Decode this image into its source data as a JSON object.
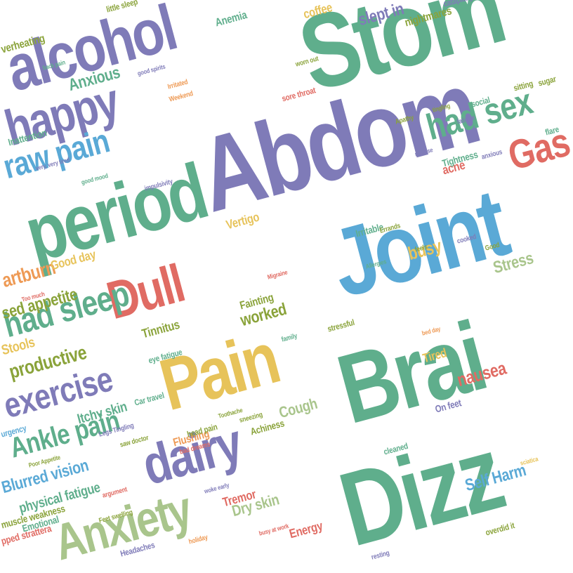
{
  "palette": {
    "green": "#5fae8c",
    "purple": "#7f7bb8",
    "blue": "#5aa9d6",
    "yellow": "#e7c35a",
    "red": "#e06b63",
    "orange": "#ee9a55",
    "olive": "#8aa33a",
    "sage": "#a9c58c"
  },
  "words": [
    "Abdom",
    "Stom",
    "Joint",
    "Brai",
    "Dizz",
    "period",
    "Pain",
    "alcohol",
    "happy",
    "Dull",
    "dairy",
    "Anxiety",
    "exercise",
    "had sleep",
    "Ankle pain",
    "raw pain",
    "Gas",
    "had sex",
    "artburn",
    "sed appetite",
    "productive",
    "Anxious",
    "nausea",
    "Self Harm",
    "Stress",
    "busy",
    "Blurred vision",
    "slept in",
    "physical fatigue",
    "Itchy skin",
    "Vertigo",
    "Tinnitus",
    "worked",
    "Dry skin",
    "Tremor",
    "Cough",
    "Stools",
    "Fainting",
    "Flushing",
    "Anemia",
    "coffee",
    "nightmares",
    "acne",
    "Irritable",
    "Tired",
    "Energy",
    "Good day",
    "eye fatigue",
    "head pain",
    "bad dreams",
    "sore throat",
    "Inattention",
    "Tightness",
    "On feet",
    "Emotional",
    "Headaches",
    "Feet swelling",
    "sneezing",
    "Achiness",
    "muscle weakness",
    "urgency",
    "cleaned",
    "overdid it",
    "stressful",
    "little sleep",
    "cataplexy",
    "worn out",
    "social",
    "sugar",
    "sitting",
    "flare",
    "feels",
    "cooked",
    "Good",
    "Allergies",
    "holiday",
    "resting",
    "verheating",
    "Legs Tingling",
    "Car travel",
    "saw doctor",
    "argument",
    "impulsivity",
    "pped strattera",
    "Poor Appetite",
    "malaise",
    "anxious",
    "family",
    "Errands",
    "bed day",
    "Weekend",
    "Irritated",
    "good spirits",
    "back pain",
    "fatigue",
    "very, very tired",
    "good mood",
    "Toothache",
    "busy at work",
    "woke early",
    "sciatica",
    "tingling",
    "Apathy",
    "Too much",
    "Migraine"
  ]
}
